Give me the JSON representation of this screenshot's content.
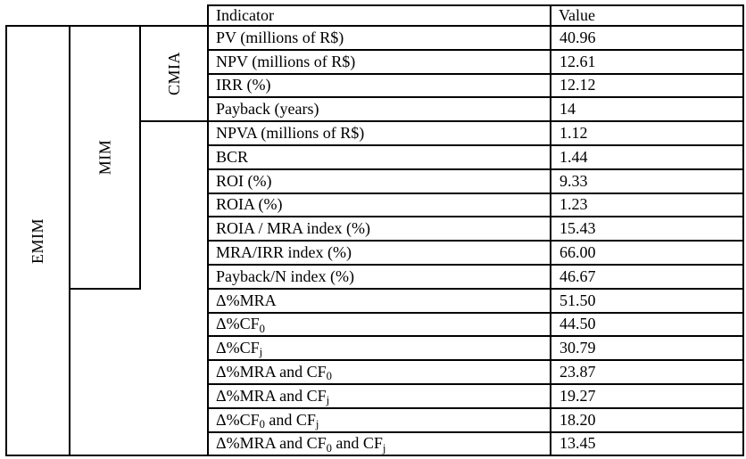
{
  "page": {
    "background": "#ffffff"
  },
  "table": {
    "colors": {
      "border": "#000000",
      "text": "#000000",
      "background": "#ffffff"
    },
    "columns": {
      "indicator": "Indicator",
      "value": "Value"
    },
    "group_labels": {
      "outer": "EMIM",
      "middle": "MIM",
      "inner": "CMIA"
    },
    "rows": [
      {
        "indicator": "PV (millions of R$)",
        "value": "40.96"
      },
      {
        "indicator": "NPV (millions of R$)",
        "value": "12.61"
      },
      {
        "indicator": "IRR (%)",
        "value": "12.12"
      },
      {
        "indicator": "Payback (years)",
        "value": "14"
      },
      {
        "indicator": "NPVA (millions of R$)",
        "value": "1.12"
      },
      {
        "indicator": "BCR",
        "value": "1.44"
      },
      {
        "indicator": "ROI (%)",
        "value": "9.33"
      },
      {
        "indicator": "ROIA (%)",
        "value": "1.23"
      },
      {
        "indicator": "ROIA / MRA index (%)",
        "value": "15.43"
      },
      {
        "indicator": "MRA/IRR index (%)",
        "value": "66.00"
      },
      {
        "indicator": "Payback/N index (%)",
        "value": "46.67"
      },
      {
        "indicator": "Δ%MRA",
        "value": "51.50"
      },
      {
        "indicator": "Δ%CF_{0}",
        "value": "44.50"
      },
      {
        "indicator": "Δ%CF_{j}",
        "value": "30.79"
      },
      {
        "indicator": "Δ%MRA and CF_{0}",
        "value": "23.87"
      },
      {
        "indicator": "Δ%MRA and CF_{j}",
        "value": "19.27"
      },
      {
        "indicator": "Δ%CF_{0} and CF_{j}",
        "value": "18.20"
      },
      {
        "indicator": "Δ%MRA and CF_{0} and CF_{j}",
        "value": "13.45"
      }
    ]
  }
}
